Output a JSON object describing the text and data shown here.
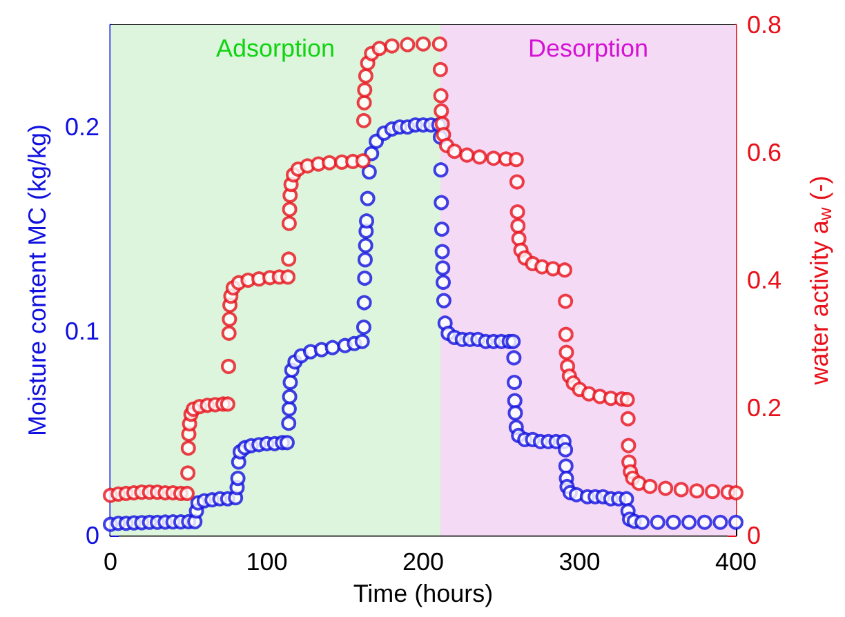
{
  "chart_data": {
    "type": "scatter",
    "xlabel": "Time (hours)",
    "ylabel": "Moisture content MC (kg/kg)",
    "y2label": "water activity a$_{w}$ (-)",
    "xlim": [
      0,
      400
    ],
    "xticks": [
      0,
      100,
      200,
      300,
      400
    ],
    "ylim": [
      0,
      0.25
    ],
    "yticks": [
      0,
      0.1,
      0.2
    ],
    "y2lim": [
      0,
      0.8
    ],
    "y2ticks": [
      0,
      0.2,
      0.4,
      0.6,
      0.8
    ],
    "marker": "circle",
    "bands": [
      {
        "axis": "x",
        "from": 0,
        "to": 211,
        "label": "Adsorption",
        "color": "#dcf5dc"
      },
      {
        "axis": "x",
        "from": 211,
        "to": 400,
        "label": "Desorption",
        "color": "#f4daf4"
      }
    ],
    "series": [
      {
        "color": "#1010e0",
        "x": [
          0,
          5,
          10,
          15,
          20,
          25,
          30,
          35,
          40,
          45,
          50,
          54,
          55,
          56,
          60,
          65,
          70,
          75,
          80,
          81,
          81.5,
          82,
          83,
          86,
          90,
          95,
          100,
          105,
          110,
          113,
          114,
          114.3,
          114.6,
          115,
          116,
          118,
          122,
          128,
          135,
          142,
          150,
          156,
          161,
          162,
          162.3,
          162.6,
          162.9,
          163.2,
          163.5,
          163.8,
          164.5,
          165.5,
          167,
          170,
          175,
          180,
          185,
          190,
          195,
          200,
          205,
          210,
          211,
          211.3,
          211.6,
          211.9,
          212.2,
          212.5,
          212.8,
          213.2,
          214,
          216,
          220,
          225,
          230,
          235,
          240,
          245,
          250,
          255,
          257.5,
          258,
          258.3,
          258.6,
          258.9,
          259.5,
          261,
          265,
          270,
          275,
          280,
          285,
          290,
          291,
          291.3,
          291.6,
          292,
          294,
          298,
          305,
          310,
          315,
          320,
          325,
          330,
          331,
          332,
          335,
          340,
          350,
          360,
          370,
          380,
          390,
          400
        ],
        "values": [
          0.0055,
          0.006,
          0.006,
          0.0062,
          0.0063,
          0.0065,
          0.0065,
          0.0066,
          0.0067,
          0.0067,
          0.0068,
          0.0068,
          0.012,
          0.016,
          0.017,
          0.0175,
          0.018,
          0.018,
          0.0185,
          0.0235,
          0.028,
          0.036,
          0.041,
          0.043,
          0.044,
          0.0445,
          0.045,
          0.045,
          0.0455,
          0.0455,
          0.055,
          0.062,
          0.068,
          0.075,
          0.081,
          0.085,
          0.088,
          0.09,
          0.091,
          0.092,
          0.093,
          0.094,
          0.095,
          0.102,
          0.114,
          0.126,
          0.135,
          0.142,
          0.149,
          0.154,
          0.165,
          0.178,
          0.187,
          0.193,
          0.197,
          0.199,
          0.2,
          0.2,
          0.201,
          0.201,
          0.201,
          0.201,
          0.195,
          0.179,
          0.163,
          0.15,
          0.139,
          0.131,
          0.124,
          0.115,
          0.104,
          0.099,
          0.097,
          0.096,
          0.096,
          0.096,
          0.095,
          0.095,
          0.095,
          0.095,
          0.095,
          0.087,
          0.075,
          0.066,
          0.06,
          0.053,
          0.049,
          0.047,
          0.047,
          0.046,
          0.046,
          0.046,
          0.046,
          0.042,
          0.034,
          0.028,
          0.024,
          0.021,
          0.02,
          0.019,
          0.019,
          0.019,
          0.018,
          0.018,
          0.018,
          0.012,
          0.008,
          0.007,
          0.0065,
          0.0065,
          0.0065,
          0.0065,
          0.0065,
          0.0065,
          0.0065
        ]
      },
      {
        "color": "#e8101a",
        "axis": "y2",
        "x": [
          0,
          5,
          10,
          15,
          20,
          25,
          30,
          35,
          40,
          45,
          49,
          49.5,
          49.8,
          50.1,
          50.6,
          51.5,
          53,
          57,
          62,
          67,
          72,
          75,
          75.5,
          75.8,
          76.1,
          76.4,
          77,
          78.5,
          82,
          88,
          95,
          102,
          108,
          113.5,
          114,
          114.3,
          114.6,
          114.9,
          115.5,
          117,
          120,
          126,
          133,
          140,
          148,
          155,
          161.5,
          162,
          162.3,
          162.6,
          163.3,
          164.5,
          167,
          172,
          180,
          190,
          200,
          210.5,
          211,
          211.3,
          211.6,
          212.2,
          213,
          215,
          220,
          228,
          236,
          245,
          253,
          259.5,
          260,
          260.3,
          260.6,
          261.2,
          262.5,
          265,
          270,
          276,
          283,
          290.5,
          291,
          291.3,
          291.6,
          292.3,
          293.5,
          296,
          300,
          306,
          313,
          320,
          327,
          330.5,
          331,
          331.3,
          331.6,
          332.5,
          334,
          338,
          345,
          355,
          365,
          375,
          385,
          395,
          400
        ],
        "values": [
          0.063,
          0.065,
          0.066,
          0.067,
          0.068,
          0.068,
          0.068,
          0.067,
          0.067,
          0.066,
          0.066,
          0.098,
          0.137,
          0.159,
          0.175,
          0.19,
          0.198,
          0.202,
          0.204,
          0.205,
          0.206,
          0.206,
          0.265,
          0.317,
          0.339,
          0.361,
          0.375,
          0.388,
          0.396,
          0.4,
          0.402,
          0.404,
          0.405,
          0.405,
          0.433,
          0.489,
          0.511,
          0.533,
          0.55,
          0.565,
          0.574,
          0.579,
          0.582,
          0.584,
          0.585,
          0.586,
          0.587,
          0.65,
          0.678,
          0.698,
          0.72,
          0.74,
          0.755,
          0.763,
          0.767,
          0.769,
          0.77,
          0.77,
          0.73,
          0.689,
          0.665,
          0.645,
          0.628,
          0.611,
          0.602,
          0.596,
          0.593,
          0.591,
          0.59,
          0.589,
          0.554,
          0.507,
          0.485,
          0.465,
          0.447,
          0.435,
          0.426,
          0.421,
          0.418,
          0.416,
          0.367,
          0.315,
          0.287,
          0.265,
          0.25,
          0.239,
          0.229,
          0.222,
          0.218,
          0.215,
          0.214,
          0.213,
          0.183,
          0.141,
          0.115,
          0.1,
          0.09,
          0.082,
          0.077,
          0.074,
          0.072,
          0.07,
          0.069,
          0.068,
          0.067
        ]
      }
    ]
  }
}
